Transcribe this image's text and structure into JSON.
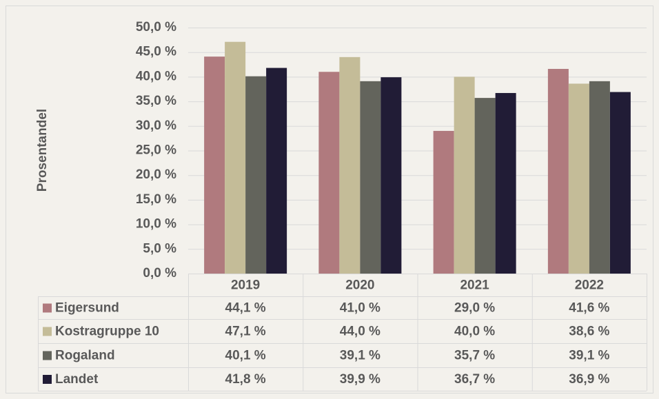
{
  "chart_data": {
    "type": "bar",
    "y_label": "Prosentandel",
    "categories": [
      "2019",
      "2020",
      "2021",
      "2022"
    ],
    "series": [
      {
        "name": "Eigersund",
        "color": "#b07a7e",
        "values": [
          44.1,
          41.0,
          29.0,
          41.6
        ],
        "value_labels": [
          "44,1 %",
          "41,0 %",
          "29,0 %",
          "41,6 %"
        ]
      },
      {
        "name": "Kostragruppe 10",
        "color": "#c4bc98",
        "values": [
          47.1,
          44.0,
          40.0,
          38.6
        ],
        "value_labels": [
          "47,1 %",
          "44,0 %",
          "40,0 %",
          "38,6 %"
        ]
      },
      {
        "name": "Rogaland",
        "color": "#63645c",
        "values": [
          40.1,
          39.1,
          35.7,
          39.1
        ],
        "value_labels": [
          "40,1 %",
          "39,1 %",
          "35,7 %",
          "39,1 %"
        ]
      },
      {
        "name": "Landet",
        "color": "#211c36",
        "values": [
          41.8,
          39.9,
          36.7,
          36.9
        ],
        "value_labels": [
          "41,8 %",
          "39,9 %",
          "36,7 %",
          "36,9 %"
        ]
      }
    ],
    "ylim": [
      0,
      50
    ],
    "yticks": [
      {
        "value": 0,
        "label": "0,0 %"
      },
      {
        "value": 5,
        "label": "5,0 %"
      },
      {
        "value": 10,
        "label": "10,0 %"
      },
      {
        "value": 15,
        "label": "15,0 %"
      },
      {
        "value": 20,
        "label": "20,0 %"
      },
      {
        "value": 25,
        "label": "25,0 %"
      },
      {
        "value": 30,
        "label": "30,0 %"
      },
      {
        "value": 35,
        "label": "35,0 %"
      },
      {
        "value": 40,
        "label": "40,0 %"
      },
      {
        "value": 45,
        "label": "45,0 %"
      },
      {
        "value": 50,
        "label": "50,0 %"
      }
    ],
    "grid": true
  }
}
